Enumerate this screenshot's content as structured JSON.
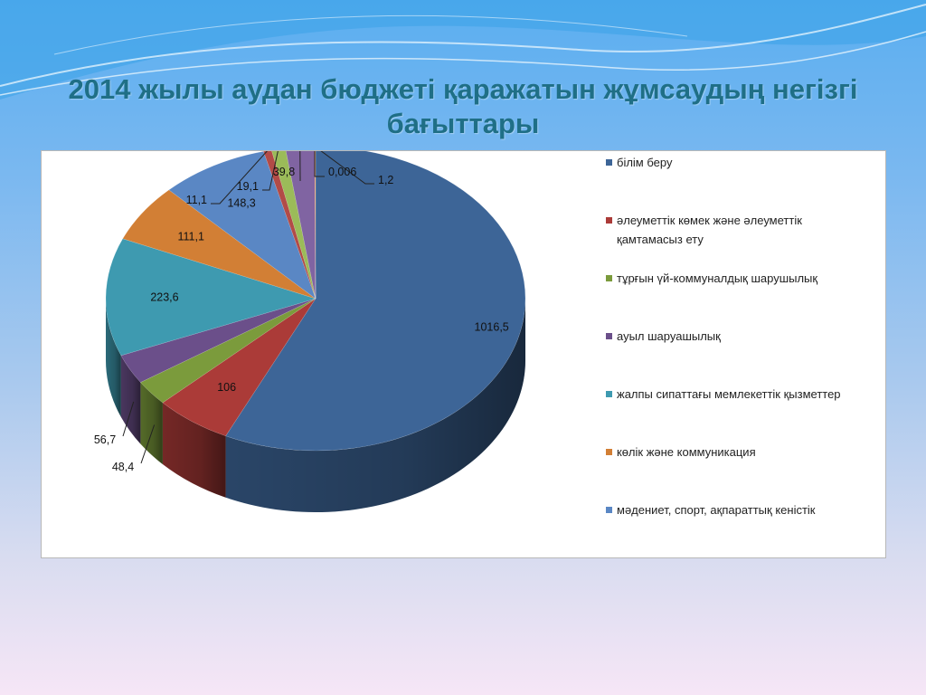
{
  "slide": {
    "title": "2014 жылы аудан бюджеті қаражатын жұмсаудың  негізгі бағыттары"
  },
  "chart_data": {
    "type": "pie",
    "title": "",
    "categories": [
      "білім беру",
      "әлеуметтік көмек және әлеуметтік қамтамасыз ету",
      "тұрғын үй-коммуналдық шарушылық",
      "ауыл шаруашылық",
      "жалпы сипаттағы мемлекеттік қызметтер",
      "көлік және коммуникация",
      "мәдениет, спорт, ақпараттық кеністік"
    ],
    "slices": [
      {
        "label": "1016,5",
        "value": 1016.5,
        "color": "#3d6597",
        "legend": "білім беру"
      },
      {
        "label": "106",
        "value": 106,
        "color": "#ab3b38",
        "legend": "әлеуметтік көмек және әлеуметтік қамтамасыз ету"
      },
      {
        "label": "48,4",
        "value": 48.4,
        "color": "#7b9b3c",
        "legend": "тұрғын үй-коммуналдық шарушылық"
      },
      {
        "label": "56,7",
        "value": 56.7,
        "color": "#6b4f8a",
        "legend": "ауыл шаруашылық"
      },
      {
        "label": "223,6",
        "value": 223.6,
        "color": "#3e9ab0",
        "legend": "жалпы сипаттағы мемлекеттік қызметтер"
      },
      {
        "label": "111,1",
        "value": 111.1,
        "color": "#d27f35",
        "legend": "көлік және коммуникация"
      },
      {
        "label": "148,3",
        "value": 148.3,
        "color": "#5a87c4",
        "legend": "мәдениет, спорт, ақпараттық кеністік"
      },
      {
        "label": "11,1",
        "value": 11.1,
        "color": "#b24b47"
      },
      {
        "label": "19,1",
        "value": 19.1,
        "color": "#9bbb59"
      },
      {
        "label": "39,8",
        "value": 39.8,
        "color": "#8064a2"
      },
      {
        "label": "0,006",
        "value": 0.006,
        "color": "#4bacc6"
      },
      {
        "label": "1,2",
        "value": 1.2,
        "color": "#f79646"
      }
    ],
    "legend_position": "right",
    "style": "3d-pie"
  }
}
